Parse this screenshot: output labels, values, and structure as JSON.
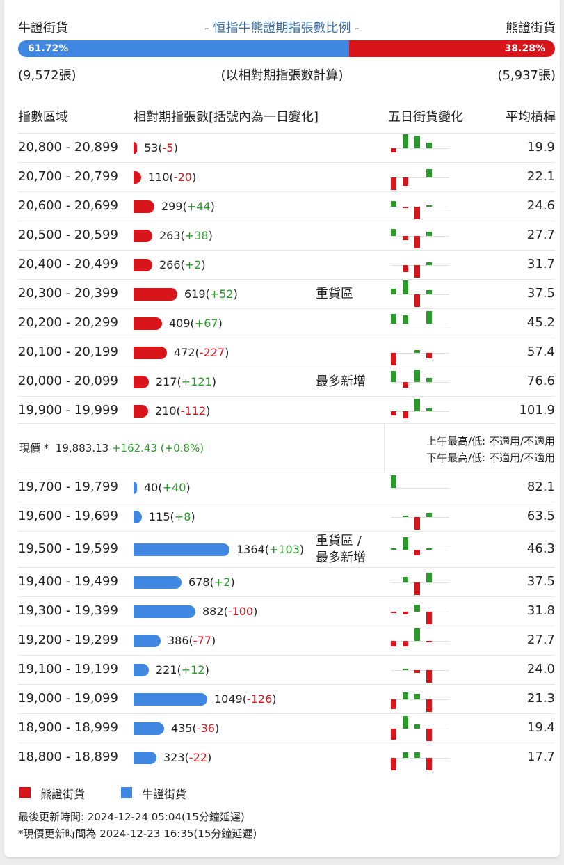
{
  "header": {
    "bull_label": "牛證街貨",
    "bear_label": "熊證街貨",
    "title": "- 恒指牛熊證期指張數比例 -",
    "bull_pct": "61.72%",
    "bear_pct": "38.28%",
    "bull_fraction": 0.6172,
    "bull_count": "(9,572張)",
    "bear_count": "(5,937張)",
    "note": "(以相對期指張數計算)"
  },
  "columns": {
    "range": "指數區域",
    "contracts": "相對期指張數[括號內為一日變化]",
    "five_day": "五日街貨變化",
    "leverage": "平均槓桿"
  },
  "colors": {
    "bear": "#d7151b",
    "bull": "#3f87e0",
    "up": "#2a9a2a",
    "down": "#d7151b"
  },
  "bear_rows": [
    {
      "range": "20,800 - 20,899",
      "count": "53",
      "change": "-5",
      "zone": "",
      "leverage": "19.9",
      "spark": [
        -3,
        10,
        9,
        4,
        0
      ]
    },
    {
      "range": "20,700 - 20,799",
      "count": "110",
      "change": "-20",
      "zone": "",
      "leverage": "22.1",
      "spark": [
        -9,
        -6,
        0,
        6,
        0
      ]
    },
    {
      "range": "20,600 - 20,699",
      "count": "299",
      "change": "+44",
      "zone": "",
      "leverage": "24.6",
      "spark": [
        4,
        -1,
        -9,
        1,
        0
      ]
    },
    {
      "range": "20,500 - 20,599",
      "count": "263",
      "change": "+38",
      "zone": "",
      "leverage": "27.7",
      "spark": [
        5,
        -3,
        -9,
        3,
        0
      ]
    },
    {
      "range": "20,400 - 20,499",
      "count": "266",
      "change": "+2",
      "zone": "",
      "leverage": "31.7",
      "spark": [
        0,
        -5,
        -9,
        2,
        0
      ]
    },
    {
      "range": "20,300 - 20,399",
      "count": "619",
      "change": "+52",
      "zone": "重貨區",
      "leverage": "37.5",
      "spark": [
        4,
        10,
        -9,
        3,
        0
      ]
    },
    {
      "range": "20,200 - 20,299",
      "count": "409",
      "change": "+67",
      "zone": "",
      "leverage": "45.2",
      "spark": [
        7,
        6,
        0,
        9,
        0
      ]
    },
    {
      "range": "20,100 - 20,199",
      "count": "472",
      "change": "-227",
      "zone": "",
      "leverage": "57.4",
      "spark": [
        -9,
        0,
        2,
        -4,
        0
      ]
    },
    {
      "range": "20,000 - 20,099",
      "count": "217",
      "change": "+121",
      "zone": "最多新增",
      "leverage": "76.6",
      "spark": [
        8,
        -4,
        9,
        3,
        0
      ]
    },
    {
      "range": "19,900 - 19,999",
      "count": "210",
      "change": "-112",
      "zone": "",
      "leverage": "101.9",
      "spark": [
        -3,
        -5,
        9,
        2,
        0
      ]
    }
  ],
  "price": {
    "label": "現價 *",
    "value": "19,883.13",
    "change": "+162.43 (+0.8%)",
    "am_high_low": "上午最高/低: 不適用/不適用",
    "pm_high_low": "下午最高/低: 不適用/不適用"
  },
  "bull_rows": [
    {
      "range": "19,700 - 19,799",
      "count": "40",
      "change": "+40",
      "zone": "",
      "leverage": "82.1",
      "spark": [
        9,
        0,
        0,
        0,
        0
      ]
    },
    {
      "range": "19,600 - 19,699",
      "count": "115",
      "change": "+8",
      "zone": "",
      "leverage": "63.5",
      "spark": [
        0,
        1,
        -9,
        3,
        0
      ]
    },
    {
      "range": "19,500 - 19,599",
      "count": "1364",
      "change": "+103",
      "zone": "重貨區 /\n最多新增",
      "leverage": "46.3",
      "spark": [
        1,
        9,
        -4,
        1,
        0
      ]
    },
    {
      "range": "19,400 - 19,499",
      "count": "678",
      "change": "+2",
      "zone": "",
      "leverage": "37.5",
      "spark": [
        0,
        4,
        -9,
        7,
        0
      ]
    },
    {
      "range": "19,300 - 19,399",
      "count": "882",
      "change": "-100",
      "zone": "",
      "leverage": "31.8",
      "spark": [
        -1,
        -2,
        5,
        -9,
        0
      ]
    },
    {
      "range": "19,200 - 19,299",
      "count": "386",
      "change": "-77",
      "zone": "",
      "leverage": "27.7",
      "spark": [
        -4,
        -4,
        9,
        -1,
        0
      ]
    },
    {
      "range": "19,100 - 19,199",
      "count": "221",
      "change": "+12",
      "zone": "",
      "leverage": "24.0",
      "spark": [
        0,
        1,
        -2,
        -9,
        0
      ]
    },
    {
      "range": "19,000 - 19,099",
      "count": "1049",
      "change": "-126",
      "zone": "",
      "leverage": "21.3",
      "spark": [
        -7,
        5,
        4,
        -9,
        0
      ]
    },
    {
      "range": "18,900 - 18,999",
      "count": "435",
      "change": "-36",
      "zone": "",
      "leverage": "19.4",
      "spark": [
        -8,
        9,
        3,
        -9,
        0
      ]
    },
    {
      "range": "18,800 - 18,899",
      "count": "323",
      "change": "-22",
      "zone": "",
      "leverage": "17.7",
      "spark": [
        -9,
        4,
        4,
        -9,
        0
      ]
    }
  ],
  "legend": {
    "bear": "熊證街貨",
    "bull": "牛證街貨"
  },
  "footer": {
    "updated": "最後更新時間: 2024-12-24 05:04(15分鐘延遲)",
    "price_updated": "*現價更新時間為 2024-12-23 16:35(15分鐘延遲)"
  }
}
